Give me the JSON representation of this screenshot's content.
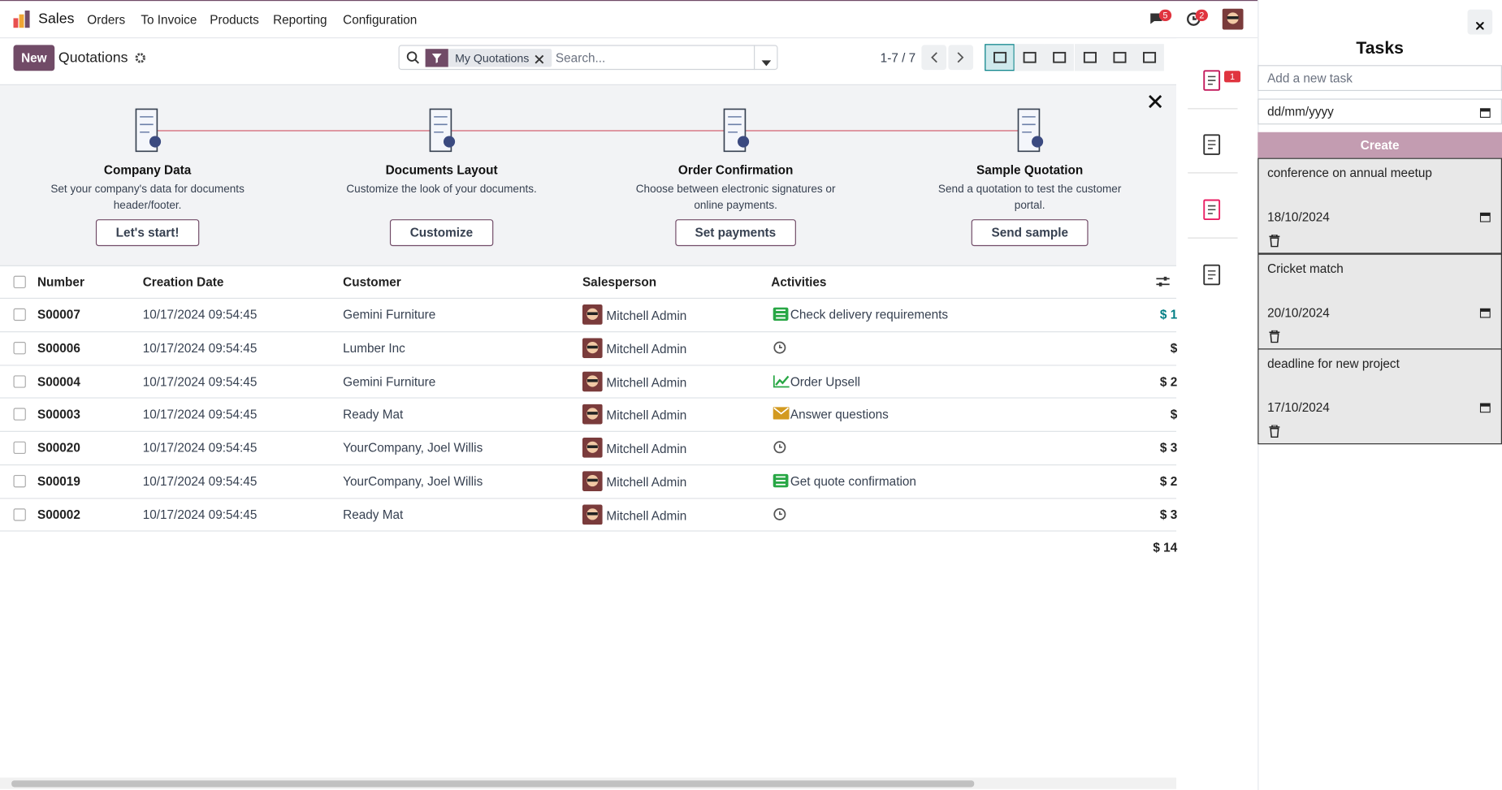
{
  "nav": {
    "brand": "Sales",
    "menu": [
      "Orders",
      "To Invoice",
      "Products",
      "Reporting",
      "Configuration"
    ],
    "messages_badge": "5",
    "activities_badge": "2"
  },
  "control": {
    "new_button": "New",
    "title": "Quotations",
    "facet": "My Quotations",
    "search_placeholder": "Search...",
    "pager": "1-7 / 7"
  },
  "onboarding": {
    "steps": [
      {
        "title": "Company Data",
        "description": "Set your company's data for documents header/footer.",
        "button": "Let's start!"
      },
      {
        "title": "Documents Layout",
        "description": "Customize the look of your documents.",
        "button": "Customize"
      },
      {
        "title": "Order Confirmation",
        "description": "Choose between electronic signatures or online payments.",
        "button": "Set payments"
      },
      {
        "title": "Sample Quotation",
        "description": "Send a quotation to test the customer portal.",
        "button": "Send sample"
      }
    ]
  },
  "table": {
    "headers": [
      "Number",
      "Creation Date",
      "Customer",
      "Salesperson",
      "Activities"
    ],
    "rows": [
      {
        "number": "S00007",
        "date": "10/17/2024 09:54:45",
        "customer": "Gemini Furniture",
        "salesperson": "Mitchell Admin",
        "activity": "Check delivery requirements",
        "activity_icon": "todo",
        "amount": "$ 1"
      },
      {
        "number": "S00006",
        "date": "10/17/2024 09:54:45",
        "customer": "Lumber Inc",
        "salesperson": "Mitchell Admin",
        "activity": null,
        "activity_icon": "clock",
        "amount": "$"
      },
      {
        "number": "S00004",
        "date": "10/17/2024 09:54:45",
        "customer": "Gemini Furniture",
        "salesperson": "Mitchell Admin",
        "activity": "Order Upsell",
        "activity_icon": "upsell",
        "amount": "$ 2"
      },
      {
        "number": "S00003",
        "date": "10/17/2024 09:54:45",
        "customer": "Ready Mat",
        "salesperson": "Mitchell Admin",
        "activity": "Answer questions",
        "activity_icon": "email",
        "amount": "$"
      },
      {
        "number": "S00020",
        "date": "10/17/2024 09:54:45",
        "customer": "YourCompany, Joel Willis",
        "salesperson": "Mitchell Admin",
        "activity": null,
        "activity_icon": "clock",
        "amount": "$ 3"
      },
      {
        "number": "S00019",
        "date": "10/17/2024 09:54:45",
        "customer": "YourCompany, Joel Willis",
        "salesperson": "Mitchell Admin",
        "activity": "Get quote confirmation",
        "activity_icon": "todo",
        "amount": "$ 2"
      },
      {
        "number": "S00002",
        "date": "10/17/2024 09:54:45",
        "customer": "Ready Mat",
        "salesperson": "Mitchell Admin",
        "activity": null,
        "activity_icon": "clock",
        "amount": "$ 3"
      }
    ],
    "total": "$ 14"
  },
  "sidebar": {
    "badge": "1"
  },
  "tasks": {
    "title": "Tasks",
    "new_task_placeholder": "Add a new task",
    "date_placeholder": "dd/mm/yyyy",
    "create_button": "Create",
    "items": [
      {
        "text": "conference on annual meetup",
        "date": "18/10/2024"
      },
      {
        "text": "Cricket match",
        "date": "20/10/2024"
      },
      {
        "text": "deadline for new project",
        "date": "17/10/2024"
      }
    ]
  }
}
